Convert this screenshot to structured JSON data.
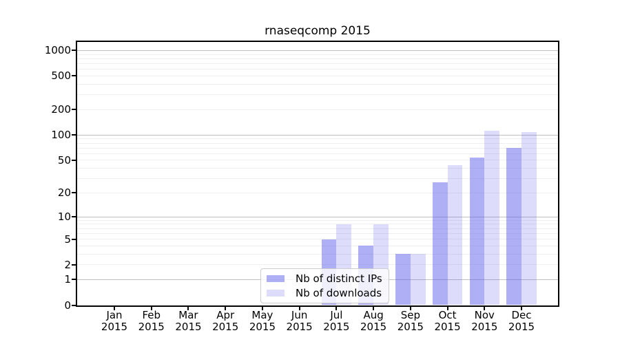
{
  "title": "rnaseqcomp 2015",
  "chart_data": {
    "type": "bar",
    "title": "rnaseqcomp 2015",
    "categories": [
      "Jan",
      "Feb",
      "Mar",
      "Apr",
      "May",
      "Jun",
      "Jul",
      "Aug",
      "Sep",
      "Oct",
      "Nov",
      "Dec"
    ],
    "year_label": "2015",
    "series": [
      {
        "name": "Nb of distinct IPs",
        "color": "rgba(87,87,235,0.48)",
        "values": [
          0,
          0,
          0,
          0,
          0,
          0,
          5,
          4,
          3,
          27,
          54,
          70
        ]
      },
      {
        "name": "Nb of downloads",
        "color": "rgba(87,87,235,0.20)",
        "values": [
          0,
          0,
          0,
          0,
          0,
          0,
          8,
          8,
          3,
          44,
          112,
          108
        ]
      }
    ],
    "yscale": "log1p",
    "yticks": [
      0,
      1,
      2,
      5,
      10,
      20,
      50,
      100,
      200,
      500,
      1000
    ],
    "ylim": [
      0,
      1260
    ],
    "grid": "both",
    "legend_position": "lower-center-inside"
  }
}
